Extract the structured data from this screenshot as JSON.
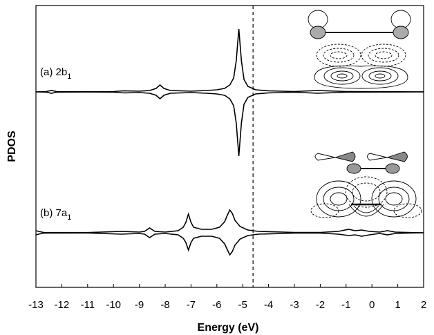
{
  "axes": {
    "xlabel": "Energy (eV)",
    "ylabel": "PDOS",
    "xlim": [
      -13,
      2
    ],
    "xticks": [
      -13,
      -12,
      -11,
      -10,
      -9,
      -8,
      -7,
      -6,
      -5,
      -4,
      -3,
      -2,
      -1,
      0,
      1,
      2
    ],
    "vline": -4.6
  },
  "chart_data": [
    {
      "type": "line",
      "label": "(a) 2b",
      "label_sub": "1",
      "ylim": [
        -102,
        125
      ],
      "x": [
        -13,
        -12.6,
        -12.4,
        -12.2,
        -11,
        -10,
        -9.6,
        -9,
        -8.6,
        -8.35,
        -8.2,
        -8.05,
        -7.8,
        -7,
        -6.4,
        -6,
        -5.7,
        -5.5,
        -5.35,
        -5.25,
        -5.15,
        -5.05,
        -4.95,
        -4.8,
        -4.5,
        -4,
        -3,
        -2.1,
        -1,
        0,
        1,
        2
      ],
      "series": [
        {
          "color": "#000000",
          "values": [
            0,
            0.5,
            2,
            0.5,
            0.2,
            0.5,
            1.5,
            1,
            2,
            5,
            10,
            5,
            2,
            1,
            2,
            3,
            5,
            10,
            20,
            45,
            91,
            45,
            18,
            8,
            3,
            1.5,
            0.5,
            2,
            0.5,
            0.3,
            0.2,
            0
          ]
        },
        {
          "color": "#000000",
          "values": [
            0,
            -0.5,
            -2,
            -0.5,
            -0.2,
            -0.5,
            -1.5,
            -1,
            -2,
            -5,
            -10,
            -5,
            -2,
            -1,
            -2,
            -3,
            -5,
            -10,
            -20,
            -45,
            -93,
            -45,
            -18,
            -8,
            -3,
            -1.5,
            -0.5,
            -2,
            -0.5,
            -0.3,
            -0.2,
            0
          ]
        }
      ]
    },
    {
      "type": "line",
      "label": "(b) 7a",
      "label_sub": "1",
      "ylim": [
        -79,
        102
      ],
      "x": [
        -13,
        -12.9,
        -12.7,
        -11,
        -9.7,
        -9,
        -8.8,
        -8.6,
        -8.4,
        -8,
        -7.5,
        -7.3,
        -7.2,
        -7.1,
        -7,
        -6.9,
        -6.6,
        -6.2,
        -5.9,
        -5.7,
        -5.6,
        -5.5,
        -5.4,
        -5.3,
        -5.1,
        -4.8,
        -4.4,
        -3,
        -2,
        -1.3,
        -0.9,
        -0.65,
        -0.4,
        -0.1,
        0.3,
        0.6,
        0.9,
        1.5,
        2
      ],
      "series": [
        {
          "color": "#000000",
          "values": [
            3,
            2,
            0.5,
            0.3,
            2,
            1,
            2,
            7,
            2,
            1,
            3,
            8,
            15,
            27,
            15,
            8,
            5,
            5,
            8,
            16,
            25,
            33,
            28,
            18,
            9,
            4,
            2,
            0.5,
            0.5,
            2,
            5,
            3,
            4,
            2,
            1,
            3,
            1,
            0.3,
            0
          ]
        },
        {
          "color": "#000000",
          "values": [
            -3,
            -2,
            -0.5,
            -0.3,
            -2,
            -1,
            -2,
            -7,
            -2,
            -1,
            -3,
            -8,
            -14,
            -25,
            -14,
            -8,
            -5,
            -5,
            -8,
            -16,
            -24,
            -32,
            -27,
            -18,
            -9,
            -4,
            -2,
            -0.5,
            -0.5,
            -2,
            -4,
            -3,
            -5,
            -3,
            -1,
            -3,
            -1,
            -0.3,
            0
          ]
        }
      ]
    }
  ]
}
